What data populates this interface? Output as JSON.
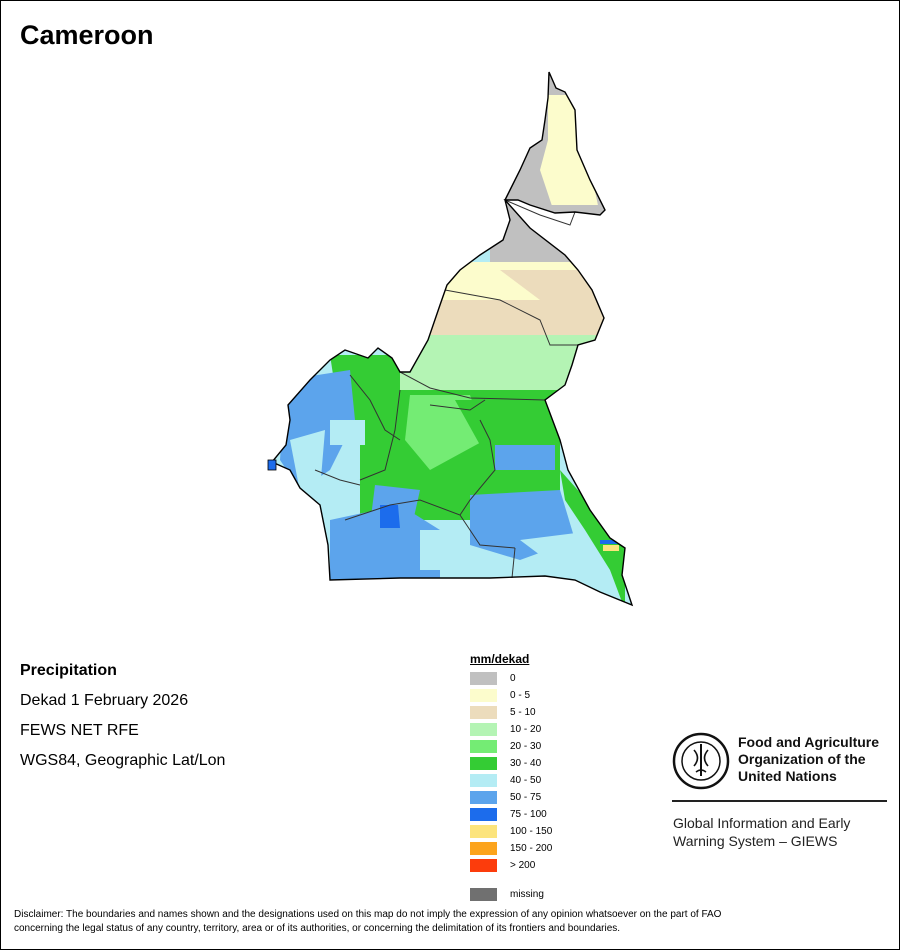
{
  "map_title": "Cameroon",
  "info": {
    "heading": "Precipitation",
    "period": "Dekad 1 February 2026",
    "source": "FEWS NET RFE",
    "projection": "WGS84, Geographic Lat/Lon"
  },
  "legend": {
    "title": "mm/dekad",
    "classes": [
      {
        "label": "0",
        "color": "#c0c0c0"
      },
      {
        "label": "0 - 5",
        "color": "#fcfccc"
      },
      {
        "label": "5 - 10",
        "color": "#ecdcbc"
      },
      {
        "label": "10 - 20",
        "color": "#b4f4b4"
      },
      {
        "label": "20 - 30",
        "color": "#74ec74"
      },
      {
        "label": "30 - 40",
        "color": "#34cc34"
      },
      {
        "label": "40 - 50",
        "color": "#b4ecf4"
      },
      {
        "label": "50 - 75",
        "color": "#5ca4ec"
      },
      {
        "label": "75 - 100",
        "color": "#1c6cec"
      },
      {
        "label": "100 - 150",
        "color": "#fce47c"
      },
      {
        "label": "150 - 200",
        "color": "#fca41c"
      },
      {
        "label": "> 200",
        "color": "#fc3c0c"
      }
    ],
    "missing": {
      "label": "missing",
      "color": "#707070"
    }
  },
  "org": {
    "line1": "Food and Agriculture",
    "line2": "Organization of the",
    "line3": "United Nations",
    "system1": "Global Information and Early",
    "system2": "Warning System – GIEWS"
  },
  "disclaimer": {
    "line1": "Disclaimer: The boundaries and names shown and the designations used on this map do not imply the expression of any opinion whatsoever on the part of FAO",
    "line2": "concerning the legal status of any country, territory, area or of its authorities, or concerning the delimitation of its frontiers and boundaries."
  }
}
